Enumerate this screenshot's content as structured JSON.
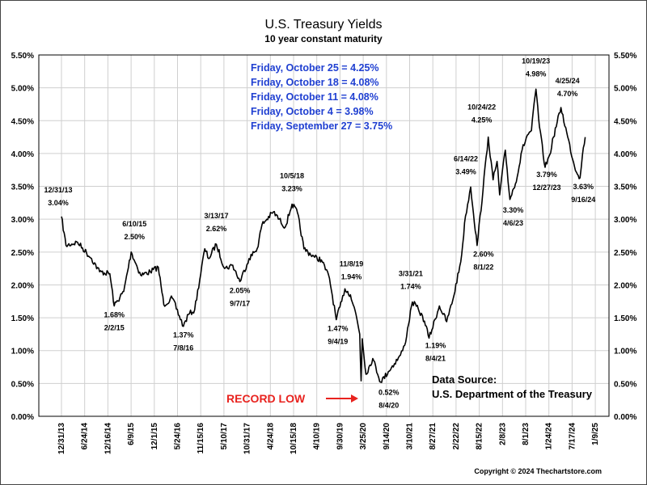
{
  "chart_data": {
    "type": "line",
    "title": "U.S. Treasury Yields",
    "subtitle": "10 year constant maturity",
    "xlabel": "",
    "ylabel": "",
    "y_ticks": [
      "0.00%",
      "0.50%",
      "1.00%",
      "1.50%",
      "2.00%",
      "2.50%",
      "3.00%",
      "3.50%",
      "4.00%",
      "4.50%",
      "5.00%",
      "5.50%"
    ],
    "ylim": [
      0,
      5.5
    ],
    "x_ticks": [
      "12/31/13",
      "6/24/14",
      "12/16/14",
      "6/9/15",
      "12/1/15",
      "5/24/16",
      "11/15/16",
      "5/10/17",
      "10/31/17",
      "4/24/18",
      "10/15/18",
      "4/10/19",
      "9/30/19",
      "3/25/20",
      "9/14/20",
      "3/10/21",
      "8/27/21",
      "2/22/22",
      "8/15/22",
      "2/8/23",
      "8/1/23",
      "1/24/24",
      "7/17/24",
      "1/9/25"
    ],
    "grid": true,
    "series": [
      {
        "x": [
          "2013-12-31",
          "2014-02-03",
          "2014-05-01",
          "2014-08-15",
          "2014-10-15",
          "2014-12-31",
          "2015-02-02",
          "2015-04-15",
          "2015-06-10",
          "2015-08-20",
          "2015-11-01",
          "2015-12-31",
          "2016-02-11",
          "2016-04-15",
          "2016-07-08",
          "2016-08-15",
          "2016-10-01",
          "2016-12-16",
          "2017-01-15",
          "2017-03-13",
          "2017-05-15",
          "2017-07-15",
          "2017-09-07",
          "2017-11-15",
          "2018-01-15",
          "2018-02-21",
          "2018-05-17",
          "2018-08-15",
          "2018-10-05",
          "2018-11-15",
          "2019-01-03",
          "2019-03-25",
          "2019-05-15",
          "2019-07-15",
          "2019-09-04",
          "2019-10-15",
          "2019-11-08",
          "2019-12-20",
          "2020-01-31",
          "2020-02-28",
          "2020-03-09",
          "2020-03-18",
          "2020-04-15",
          "2020-06-05",
          "2020-08-04",
          "2020-10-01",
          "2020-12-31",
          "2021-02-01",
          "2021-03-31",
          "2021-05-15",
          "2021-06-30",
          "2021-08-04",
          "2021-10-21",
          "2021-12-15",
          "2022-01-31",
          "2022-03-31",
          "2022-05-06",
          "2022-06-14",
          "2022-08-01",
          "2022-09-15",
          "2022-10-24",
          "2022-11-30",
          "2022-12-30",
          "2023-01-18",
          "2023-03-02",
          "2023-04-06",
          "2023-05-31",
          "2023-07-06",
          "2023-08-15",
          "2023-09-15",
          "2023-10-19",
          "2023-11-15",
          "2023-12-27",
          "2024-01-31",
          "2024-02-28",
          "2024-04-25",
          "2024-06-15",
          "2024-08-05",
          "2024-09-16",
          "2024-10-04",
          "2024-10-25"
        ],
        "values": [
          3.04,
          2.6,
          2.65,
          2.4,
          2.2,
          2.17,
          1.68,
          1.9,
          2.5,
          2.15,
          2.2,
          2.27,
          1.7,
          1.8,
          1.37,
          1.55,
          1.62,
          2.55,
          2.4,
          2.62,
          2.25,
          2.3,
          2.05,
          2.4,
          2.55,
          2.92,
          3.11,
          2.88,
          3.23,
          3.1,
          2.55,
          2.42,
          2.38,
          2.1,
          1.47,
          1.75,
          1.94,
          1.85,
          1.55,
          1.25,
          0.54,
          1.18,
          0.64,
          0.88,
          0.52,
          0.68,
          0.93,
          1.08,
          1.74,
          1.63,
          1.45,
          1.19,
          1.68,
          1.44,
          1.78,
          2.35,
          3.05,
          3.49,
          2.6,
          3.45,
          4.25,
          3.6,
          3.88,
          3.37,
          4.05,
          3.3,
          3.65,
          4.05,
          4.28,
          4.35,
          4.98,
          4.4,
          3.79,
          3.98,
          4.25,
          4.7,
          4.25,
          3.8,
          3.63,
          3.98,
          4.25
        ]
      }
    ],
    "annotations": [
      {
        "date": "12/31/13",
        "value": "3.04%"
      },
      {
        "date": "2/2/15",
        "value": "1.68%"
      },
      {
        "date": "6/10/15",
        "value": "2.50%"
      },
      {
        "date": "7/8/16",
        "value": "1.37%"
      },
      {
        "date": "3/13/17",
        "value": "2.62%"
      },
      {
        "date": "9/7/17",
        "value": "2.05%"
      },
      {
        "date": "10/5/18",
        "value": "3.23%"
      },
      {
        "date": "11/8/19",
        "value": "1.94%"
      },
      {
        "date": "9/4/19",
        "value": "1.47%"
      },
      {
        "date": "8/4/20",
        "value": "0.52%"
      },
      {
        "date": "3/31/21",
        "value": "1.74%"
      },
      {
        "date": "8/4/21",
        "value": "1.19%"
      },
      {
        "date": "6/14/22",
        "value": "3.49%"
      },
      {
        "date": "8/1/22",
        "value": "2.60%"
      },
      {
        "date": "10/24/22",
        "value": "4.25%"
      },
      {
        "date": "4/6/23",
        "value": "3.30%"
      },
      {
        "date": "10/19/23",
        "value": "4.98%"
      },
      {
        "date": "12/27/23",
        "value": "3.79%"
      },
      {
        "date": "4/25/24",
        "value": "4.70%"
      },
      {
        "date": "9/16/24",
        "value": "3.63%"
      }
    ],
    "weekly_notes": [
      {
        "label": "Friday, October 25",
        "value": "4.25%"
      },
      {
        "label": "Friday, October 18",
        "value": "4.08%"
      },
      {
        "label": "Friday, October 11",
        "value": "4.08%"
      },
      {
        "label": "Friday, October 4",
        "value": "3.98%"
      },
      {
        "label": "Friday, September 27",
        "value": "3.75%"
      }
    ],
    "record_low_label": "RECORD LOW",
    "source_line1": "Data Source:",
    "source_line2": "U.S. Department of the Treasury",
    "copyright": "Copyright © 2024 Thechartstore.com",
    "colors": {
      "line": "#000000",
      "notes": "#1f3fd1",
      "record": "#e8231f",
      "grid": "#cfcfcf"
    }
  }
}
